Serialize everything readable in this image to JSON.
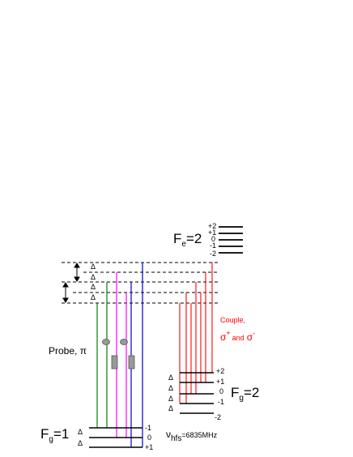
{
  "excited": {
    "F": "F",
    "sub": "e",
    "value": "=2",
    "sublevels": [
      "+2",
      "+1",
      "0",
      "-1",
      "-2"
    ]
  },
  "delta": "Δ",
  "couple": {
    "label": "Couple,",
    "sigma": "σ",
    "plus": "+",
    "minus": "-",
    "and": "and"
  },
  "probe": {
    "label": "Probe, π"
  },
  "ground1": {
    "F": "F",
    "sub": "g",
    "value": "=1",
    "sublevels": [
      "-1",
      "0",
      "+1"
    ]
  },
  "ground2": {
    "F": "F",
    "sub": "g",
    "value": "=2",
    "sublevels": [
      "+2",
      "+1",
      "0",
      "-1",
      "-2"
    ]
  },
  "hfs": {
    "nu": "ν",
    "sub": "hfs",
    "value": "=6835MHz"
  },
  "colors": {
    "green": "#008000",
    "magenta": "#ff00ff",
    "blue": "#0000cc",
    "red": "#ff0000",
    "purple": "#7a00ff",
    "marker": "#999999"
  }
}
